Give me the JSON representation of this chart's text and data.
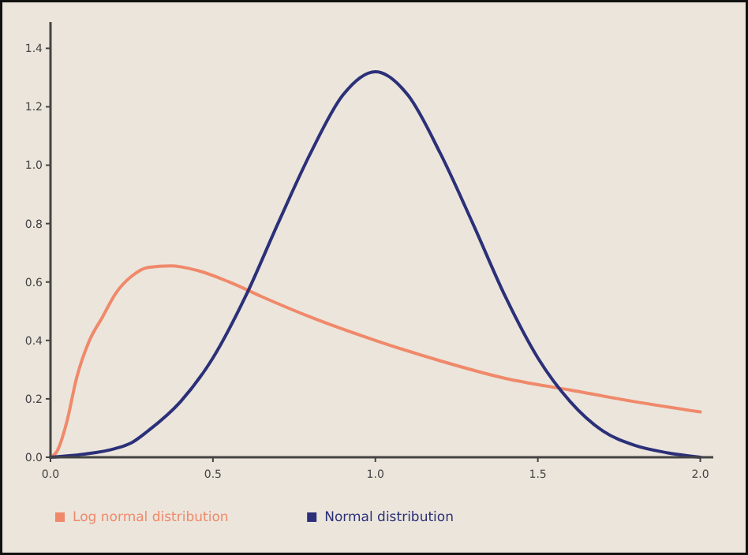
{
  "chart_data": {
    "type": "line",
    "xlim": [
      0,
      2.04
    ],
    "xticks": [
      {
        "value": 0,
        "label": "0.0"
      },
      0.5,
      {
        "value": 1,
        "label": "1.0"
      },
      1.5,
      {
        "value": 2,
        "label": "2.0"
      }
    ],
    "ylim": [
      0,
      1.49
    ],
    "yticks": [
      {
        "value": 0,
        "label": "0.0"
      },
      0.2,
      0.4,
      0.6,
      0.8,
      {
        "value": 1,
        "label": "1.0"
      },
      1.2,
      1.4
    ],
    "grid": false,
    "legend": "bottom",
    "marker": "none",
    "line_style": "solid",
    "series": [
      {
        "name": "Log normal distribution",
        "color": "#f0896a",
        "x": [
          0,
          0.02,
          0.05,
          0.08,
          0.12,
          0.16,
          0.2,
          0.25,
          0.3,
          0.37,
          0.45,
          0.55,
          0.65,
          0.8,
          1.0,
          1.2,
          1.4,
          1.6,
          1.8,
          2.0
        ],
        "values": [
          0,
          0.02,
          0.12,
          0.27,
          0.4,
          0.48,
          0.56,
          0.62,
          0.65,
          0.655,
          0.64,
          0.6,
          0.55,
          0.48,
          0.4,
          0.33,
          0.27,
          0.23,
          0.19,
          0.155
        ]
      },
      {
        "name": "Normal distribution",
        "color": "#2b3078",
        "x": [
          0,
          0.1,
          0.2,
          0.25,
          0.3,
          0.4,
          0.5,
          0.6,
          0.7,
          0.8,
          0.9,
          1.0,
          1.1,
          1.2,
          1.3,
          1.4,
          1.5,
          1.6,
          1.7,
          1.8,
          1.9,
          2.0
        ],
        "values": [
          0,
          0.01,
          0.03,
          0.05,
          0.09,
          0.19,
          0.34,
          0.55,
          0.8,
          1.04,
          1.24,
          1.32,
          1.24,
          1.04,
          0.8,
          0.55,
          0.34,
          0.19,
          0.09,
          0.04,
          0.015,
          0
        ]
      }
    ]
  }
}
